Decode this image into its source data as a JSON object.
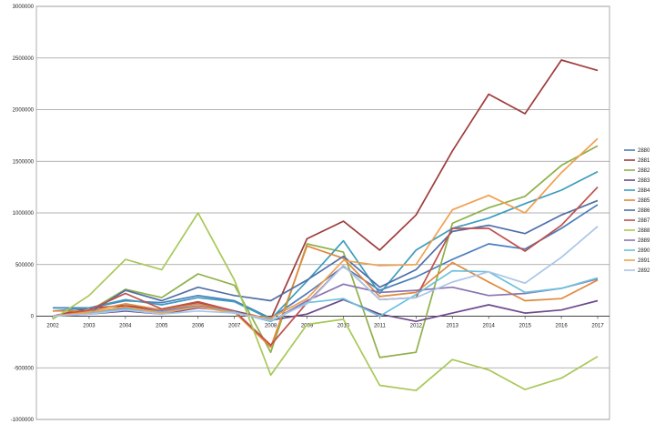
{
  "chart_data": {
    "type": "line",
    "title": "",
    "xlabel": "",
    "ylabel": "",
    "x": [
      "2002",
      "2003",
      "2004",
      "2005",
      "2006",
      "2007",
      "2008",
      "2009",
      "2010",
      "2011",
      "2012",
      "2013",
      "2014",
      "2015",
      "2016",
      "2017"
    ],
    "ylim": [
      -1000000,
      3000000
    ],
    "yticks": [
      -1000000,
      -500000,
      0,
      500000,
      1000000,
      1500000,
      2000000,
      2500000,
      3000000
    ],
    "ytick_labels": [
      "-1000000",
      "-500000",
      "0",
      "500000",
      "1000000",
      "1500000",
      "2000000",
      "2500000",
      "3000000"
    ],
    "grid": "horizontal",
    "legend": "right",
    "series": [
      {
        "name": "2880",
        "color": "#4a7ebb",
        "values": [
          80000,
          80000,
          150000,
          130000,
          200000,
          150000,
          -20000,
          220000,
          480000,
          250000,
          380000,
          550000,
          700000,
          650000,
          850000,
          1080000
        ]
      },
      {
        "name": "2881",
        "color": "#a03c3c",
        "values": [
          0,
          80000,
          100000,
          60000,
          130000,
          50000,
          -30000,
          750000,
          920000,
          640000,
          980000,
          1600000,
          2150000,
          1960000,
          2480000,
          2380000
        ]
      },
      {
        "name": "2882",
        "color": "#8fb04a",
        "values": [
          0,
          50000,
          260000,
          180000,
          410000,
          300000,
          -350000,
          700000,
          620000,
          -400000,
          -350000,
          900000,
          1050000,
          1160000,
          1460000,
          1650000
        ]
      },
      {
        "name": "2883",
        "color": "#6c4a8c",
        "values": [
          0,
          20000,
          50000,
          20000,
          80000,
          50000,
          -40000,
          20000,
          160000,
          20000,
          -50000,
          30000,
          110000,
          30000,
          60000,
          150000
        ]
      },
      {
        "name": "2884",
        "color": "#3c9cbc",
        "values": [
          50000,
          80000,
          160000,
          110000,
          180000,
          140000,
          -30000,
          340000,
          730000,
          220000,
          640000,
          850000,
          950000,
          1090000,
          1220000,
          1400000
        ]
      },
      {
        "name": "2885",
        "color": "#e0883a",
        "values": [
          50000,
          50000,
          120000,
          60000,
          120000,
          40000,
          -300000,
          680000,
          560000,
          190000,
          230000,
          520000,
          330000,
          150000,
          170000,
          350000
        ]
      },
      {
        "name": "2886",
        "color": "#4f6fa8",
        "values": [
          0,
          30000,
          250000,
          150000,
          280000,
          200000,
          150000,
          350000,
          580000,
          280000,
          450000,
          820000,
          880000,
          800000,
          980000,
          1120000
        ]
      },
      {
        "name": "2887",
        "color": "#c0504d",
        "values": [
          0,
          60000,
          220000,
          70000,
          140000,
          50000,
          -280000,
          130000,
          490000,
          160000,
          180000,
          850000,
          850000,
          630000,
          880000,
          1250000
        ]
      },
      {
        "name": "2888",
        "color": "#a8c858",
        "values": [
          -30000,
          200000,
          550000,
          450000,
          1000000,
          350000,
          -570000,
          -80000,
          -30000,
          -670000,
          -720000,
          -420000,
          -520000,
          -710000,
          -600000,
          -390000
        ]
      },
      {
        "name": "2889",
        "color": "#8a74b0",
        "values": [
          0,
          40000,
          80000,
          50000,
          100000,
          40000,
          -50000,
          150000,
          310000,
          230000,
          250000,
          280000,
          200000,
          220000,
          270000,
          360000
        ]
      },
      {
        "name": "2890",
        "color": "#6cc0dc",
        "values": [
          0,
          30000,
          70000,
          40000,
          90000,
          40000,
          -50000,
          130000,
          170000,
          0,
          210000,
          440000,
          430000,
          230000,
          270000,
          370000
        ]
      },
      {
        "name": "2891",
        "color": "#f0a050",
        "values": [
          0,
          40000,
          90000,
          30000,
          90000,
          30000,
          -20000,
          170000,
          540000,
          490000,
          500000,
          1030000,
          1170000,
          1000000,
          1390000,
          1720000
        ]
      },
      {
        "name": "2892",
        "color": "#a9c5e8",
        "values": [
          0,
          20000,
          60000,
          20000,
          50000,
          30000,
          -40000,
          120000,
          490000,
          160000,
          180000,
          330000,
          430000,
          320000,
          570000,
          870000
        ]
      }
    ]
  }
}
